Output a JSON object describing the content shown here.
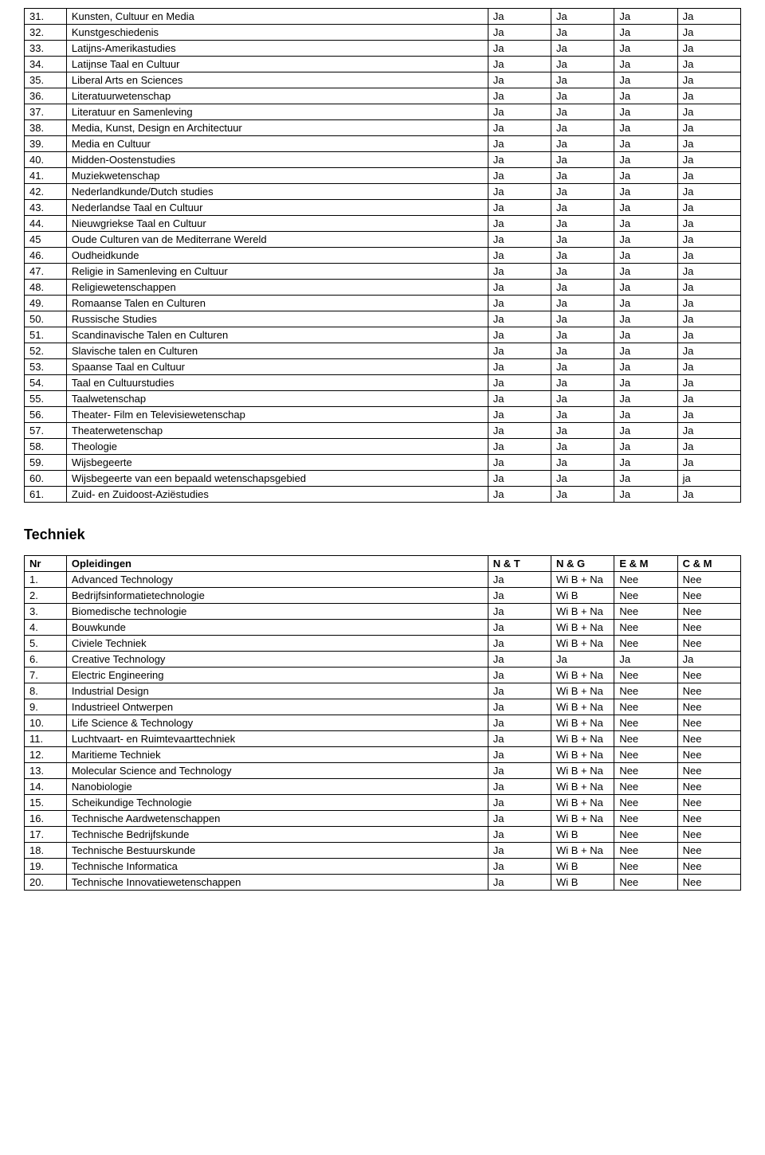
{
  "table1": {
    "rows": [
      {
        "nr": "31.",
        "name": "Kunsten, Cultuur en Media",
        "c1": "Ja",
        "c2": "Ja",
        "c3": "Ja",
        "c4": "Ja"
      },
      {
        "nr": "32.",
        "name": "Kunstgeschiedenis",
        "c1": "Ja",
        "c2": "Ja",
        "c3": "Ja",
        "c4": "Ja"
      },
      {
        "nr": "33.",
        "name": "Latijns-Amerikastudies",
        "c1": "Ja",
        "c2": "Ja",
        "c3": "Ja",
        "c4": "Ja"
      },
      {
        "nr": "34.",
        "name": "Latijnse Taal en Cultuur",
        "c1": "Ja",
        "c2": "Ja",
        "c3": "Ja",
        "c4": "Ja"
      },
      {
        "nr": "35.",
        "name": "Liberal Arts en Sciences",
        "c1": "Ja",
        "c2": "Ja",
        "c3": "Ja",
        "c4": "Ja"
      },
      {
        "nr": "36.",
        "name": "Literatuurwetenschap",
        "c1": "Ja",
        "c2": "Ja",
        "c3": "Ja",
        "c4": "Ja"
      },
      {
        "nr": "37.",
        "name": "Literatuur en Samenleving",
        "c1": "Ja",
        "c2": "Ja",
        "c3": "Ja",
        "c4": "Ja"
      },
      {
        "nr": "38.",
        "name": "Media, Kunst, Design en Architectuur",
        "c1": "Ja",
        "c2": "Ja",
        "c3": "Ja",
        "c4": "Ja"
      },
      {
        "nr": "39.",
        "name": "Media en Cultuur",
        "c1": "Ja",
        "c2": "Ja",
        "c3": "Ja",
        "c4": "Ja"
      },
      {
        "nr": "40.",
        "name": "Midden-Oostenstudies",
        "c1": "Ja",
        "c2": "Ja",
        "c3": "Ja",
        "c4": "Ja"
      },
      {
        "nr": "41.",
        "name": "Muziekwetenschap",
        "c1": "Ja",
        "c2": "Ja",
        "c3": "Ja",
        "c4": "Ja"
      },
      {
        "nr": "42.",
        "name": "Nederlandkunde/Dutch studies",
        "c1": "Ja",
        "c2": "Ja",
        "c3": "Ja",
        "c4": "Ja"
      },
      {
        "nr": "43.",
        "name": "Nederlandse Taal en Cultuur",
        "c1": "Ja",
        "c2": "Ja",
        "c3": "Ja",
        "c4": "Ja"
      },
      {
        "nr": "44.",
        "name": "Nieuwgriekse Taal en Cultuur",
        "c1": "Ja",
        "c2": "Ja",
        "c3": "Ja",
        "c4": "Ja"
      },
      {
        "nr": "45",
        "name": "Oude Culturen van de Mediterrane Wereld",
        "c1": "Ja",
        "c2": "Ja",
        "c3": "Ja",
        "c4": "Ja"
      },
      {
        "nr": "46.",
        "name": "Oudheidkunde",
        "c1": "Ja",
        "c2": "Ja",
        "c3": "Ja",
        "c4": "Ja"
      },
      {
        "nr": "47.",
        "name": "Religie in Samenleving en Cultuur",
        "c1": "Ja",
        "c2": "Ja",
        "c3": "Ja",
        "c4": "Ja"
      },
      {
        "nr": "48.",
        "name": "Religiewetenschappen",
        "c1": "Ja",
        "c2": "Ja",
        "c3": "Ja",
        "c4": "Ja"
      },
      {
        "nr": "49.",
        "name": "Romaanse Talen en Culturen",
        "c1": "Ja",
        "c2": "Ja",
        "c3": "Ja",
        "c4": "Ja"
      },
      {
        "nr": "50.",
        "name": "Russische Studies",
        "c1": "Ja",
        "c2": "Ja",
        "c3": "Ja",
        "c4": "Ja"
      },
      {
        "nr": "51.",
        "name": "Scandinavische Talen en Culturen",
        "c1": "Ja",
        "c2": "Ja",
        "c3": "Ja",
        "c4": "Ja"
      },
      {
        "nr": "52.",
        "name": "Slavische talen en Culturen",
        "c1": "Ja",
        "c2": "Ja",
        "c3": "Ja",
        "c4": "Ja"
      },
      {
        "nr": "53.",
        "name": "Spaanse Taal en Cultuur",
        "c1": "Ja",
        "c2": "Ja",
        "c3": "Ja",
        "c4": "Ja"
      },
      {
        "nr": "54.",
        "name": "Taal en Cultuurstudies",
        "c1": "Ja",
        "c2": "Ja",
        "c3": "Ja",
        "c4": "Ja"
      },
      {
        "nr": "55.",
        "name": "Taalwetenschap",
        "c1": "Ja",
        "c2": "Ja",
        "c3": "Ja",
        "c4": "Ja"
      },
      {
        "nr": "56.",
        "name": "Theater- Film en Televisiewetenschap",
        "c1": "Ja",
        "c2": "Ja",
        "c3": "Ja",
        "c4": "Ja"
      },
      {
        "nr": "57.",
        "name": "Theaterwetenschap",
        "c1": "Ja",
        "c2": "Ja",
        "c3": "Ja",
        "c4": "Ja"
      },
      {
        "nr": "58.",
        "name": "Theologie",
        "c1": "Ja",
        "c2": "Ja",
        "c3": "Ja",
        "c4": "Ja"
      },
      {
        "nr": "59.",
        "name": "Wijsbegeerte",
        "c1": "Ja",
        "c2": "Ja",
        "c3": "Ja",
        "c4": "Ja"
      },
      {
        "nr": "60.",
        "name": "Wijsbegeerte van een bepaald wetenschapsgebied",
        "c1": "Ja",
        "c2": "Ja",
        "c3": "Ja",
        "c4": "ja"
      },
      {
        "nr": "61.",
        "name": "Zuid- en Zuidoost-Aziëstudies",
        "c1": "Ja",
        "c2": "Ja",
        "c3": "Ja",
        "c4": "Ja"
      }
    ]
  },
  "section_title": "Techniek",
  "table2": {
    "header": {
      "nr": "Nr",
      "name": "Opleidingen",
      "c1": "N & T",
      "c2": "N & G",
      "c3": "E & M",
      "c4": "C & M"
    },
    "rows": [
      {
        "nr": "1.",
        "name": "Advanced Technology",
        "c1": "Ja",
        "c2": "Wi B + Na",
        "c3": "Nee",
        "c4": "Nee"
      },
      {
        "nr": "2.",
        "name": "Bedrijfsinformatietechnologie",
        "c1": "Ja",
        "c2": "Wi B",
        "c3": "Nee",
        "c4": "Nee"
      },
      {
        "nr": "3.",
        "name": "Biomedische technologie",
        "c1": "Ja",
        "c2": "Wi B + Na",
        "c3": "Nee",
        "c4": "Nee"
      },
      {
        "nr": "4.",
        "name": "Bouwkunde",
        "c1": "Ja",
        "c2": "Wi B + Na",
        "c3": "Nee",
        "c4": "Nee"
      },
      {
        "nr": "5.",
        "name": "Civiele Techniek",
        "c1": "Ja",
        "c2": "Wi B + Na",
        "c3": "Nee",
        "c4": "Nee"
      },
      {
        "nr": "6.",
        "name": "Creative Technology",
        "c1": "Ja",
        "c2": "Ja",
        "c3": "Ja",
        "c4": "Ja"
      },
      {
        "nr": "7.",
        "name": "Electric Engineering",
        "c1": "Ja",
        "c2": "Wi B + Na",
        "c3": "Nee",
        "c4": "Nee"
      },
      {
        "nr": "8.",
        "name": "Industrial Design",
        "c1": "Ja",
        "c2": "Wi B + Na",
        "c3": "Nee",
        "c4": "Nee"
      },
      {
        "nr": "9.",
        "name": "Industrieel Ontwerpen",
        "c1": "Ja",
        "c2": "Wi B + Na",
        "c3": "Nee",
        "c4": "Nee"
      },
      {
        "nr": "10.",
        "name": "Life Science & Technology",
        "c1": "Ja",
        "c2": "Wi B + Na",
        "c3": "Nee",
        "c4": "Nee"
      },
      {
        "nr": "11.",
        "name": "Luchtvaart- en Ruimtevaarttechniek",
        "c1": "Ja",
        "c2": "Wi B + Na",
        "c3": "Nee",
        "c4": "Nee"
      },
      {
        "nr": "12.",
        "name": "Maritieme Techniek",
        "c1": "Ja",
        "c2": "Wi B + Na",
        "c3": "Nee",
        "c4": "Nee"
      },
      {
        "nr": "13.",
        "name": "Molecular Science and Technology",
        "c1": "Ja",
        "c2": "Wi B + Na",
        "c3": "Nee",
        "c4": "Nee"
      },
      {
        "nr": "14.",
        "name": "Nanobiologie",
        "c1": "Ja",
        "c2": "Wi B + Na",
        "c3": "Nee",
        "c4": "Nee"
      },
      {
        "nr": "15.",
        "name": "Scheikundige Technologie",
        "c1": "Ja",
        "c2": "Wi B + Na",
        "c3": "Nee",
        "c4": "Nee"
      },
      {
        "nr": "16.",
        "name": "Technische Aardwetenschappen",
        "c1": "Ja",
        "c2": "Wi B + Na",
        "c3": "Nee",
        "c4": "Nee"
      },
      {
        "nr": "17.",
        "name": "Technische Bedrijfskunde",
        "c1": "Ja",
        "c2": "Wi B",
        "c3": "Nee",
        "c4": "Nee"
      },
      {
        "nr": "18.",
        "name": "Technische Bestuurskunde",
        "c1": "Ja",
        "c2": "Wi B + Na",
        "c3": "Nee",
        "c4": "Nee"
      },
      {
        "nr": "19.",
        "name": "Technische Informatica",
        "c1": "Ja",
        "c2": "Wi B",
        "c3": "Nee",
        "c4": "Nee"
      },
      {
        "nr": "20.",
        "name": "Technische Innovatiewetenschappen",
        "c1": "Ja",
        "c2": "Wi B",
        "c3": "Nee",
        "c4": "Nee"
      }
    ]
  }
}
